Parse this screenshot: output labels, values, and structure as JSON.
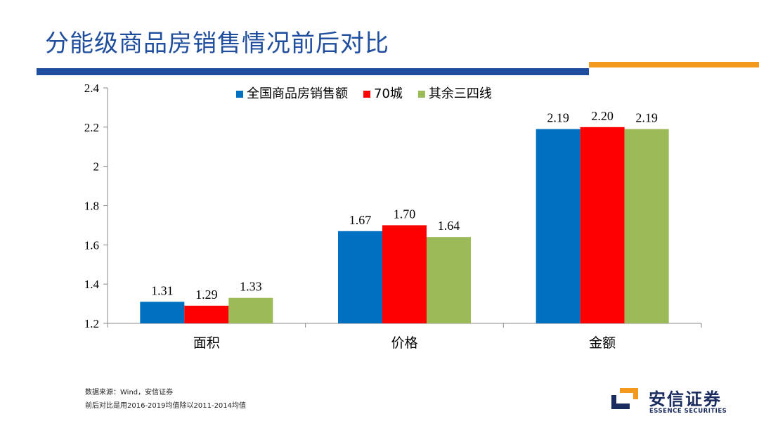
{
  "header": {
    "title": "分能级商品房销售情况前后对比"
  },
  "colors": {
    "title": "#1f4e9e",
    "accent": "#f39a1e",
    "logo": "#1a2b5f"
  },
  "chart_data": {
    "type": "bar",
    "categories": [
      "面积",
      "价格",
      "金额"
    ],
    "series": [
      {
        "name": "全国商品房销售额",
        "color": "#0070c0",
        "values": [
          1.31,
          1.67,
          2.19
        ],
        "labels": [
          "1.31",
          "1.67",
          "2.19"
        ]
      },
      {
        "name": "70城",
        "color": "#ff0000",
        "values": [
          1.29,
          1.7,
          2.2
        ],
        "labels": [
          "1.29",
          "1.70",
          "2.20"
        ]
      },
      {
        "name": "其余三四线",
        "color": "#9bbb59",
        "values": [
          1.33,
          1.64,
          2.19
        ],
        "labels": [
          "1.33",
          "1.64",
          "2.19"
        ]
      }
    ],
    "ylim": [
      1.2,
      2.4
    ],
    "yticks": [
      1.2,
      1.4,
      1.6,
      1.8,
      2,
      2.2,
      2.4
    ],
    "ytick_labels": [
      "1.2",
      "1.4",
      "1.6",
      "1.8",
      "2",
      "2.2",
      "2.4"
    ],
    "title": "",
    "xlabel": "",
    "ylabel": "",
    "grid": false,
    "legend_position": "top"
  },
  "footer": {
    "source": "数据来源：Wind，安信证券",
    "note": "前后对比是用2016-2019均值除以2011-2014均值"
  },
  "logo": {
    "cn": "安信证券",
    "en": "ESSENCE SECURITIES"
  }
}
